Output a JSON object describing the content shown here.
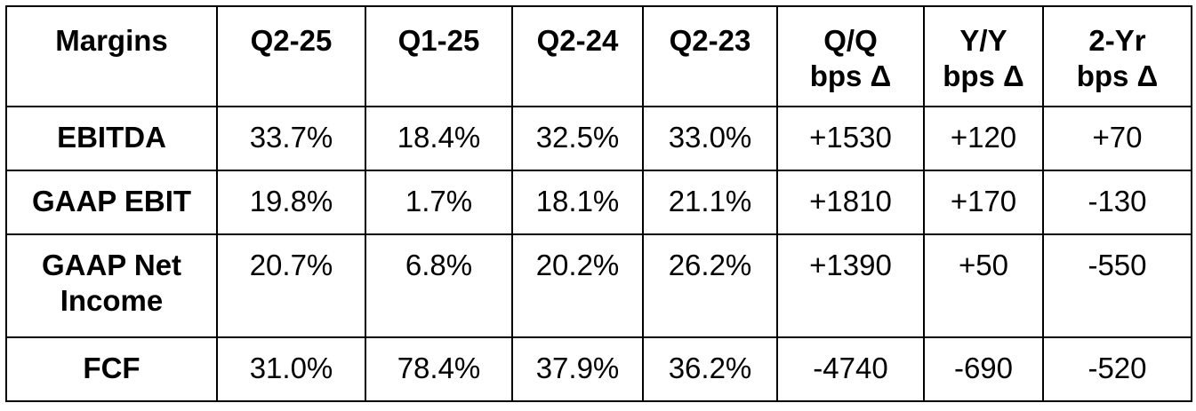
{
  "table": {
    "header": [
      "Margins",
      "Q2-25",
      "Q1-25",
      "Q2-24",
      "Q2-23",
      "Q/Q\nbps Δ",
      "Y/Y\nbps Δ",
      "2-Yr\nbps Δ"
    ],
    "rows": [
      [
        "EBITDA",
        "33.7%",
        "18.4%",
        "32.5%",
        "33.0%",
        "+1530",
        "+120",
        "+70"
      ],
      [
        "GAAP EBIT",
        "19.8%",
        "1.7%",
        "18.1%",
        "21.1%",
        "+1810",
        "+170",
        "-130"
      ],
      [
        "GAAP Net\nIncome",
        "20.7%",
        "6.8%",
        "20.2%",
        "26.2%",
        "+1390",
        "+50",
        "-550"
      ],
      [
        "FCF",
        "31.0%",
        "78.4%",
        "37.9%",
        "36.2%",
        "-4740",
        "-690",
        "-520"
      ]
    ]
  }
}
